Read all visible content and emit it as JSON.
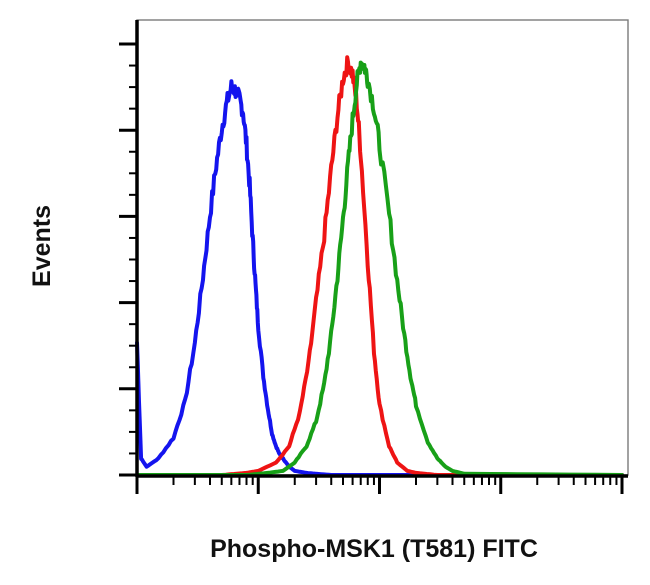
{
  "chart_data": {
    "type": "line",
    "title": "",
    "xlabel": "Phospho-MSK1 (T581) FITC",
    "ylabel": "Events",
    "x_scale": "log",
    "xlim": [
      1,
      10000
    ],
    "ylim": [
      0,
      100
    ],
    "x_tick_labels": [],
    "y_tick_labels": [],
    "grid": false,
    "legend": "none",
    "series": [
      {
        "color": "#1414ee",
        "x": [
          1,
          1.08,
          1.2,
          1.5,
          2,
          2.5,
          3,
          3.5,
          4,
          4.5,
          5,
          5.5,
          6,
          6.5,
          7,
          7.5,
          8,
          8.5,
          9,
          9.5,
          10,
          11,
          12,
          13,
          14,
          15,
          16,
          18,
          20,
          25,
          30,
          40,
          60,
          100,
          1000,
          10000
        ],
        "y": [
          32,
          4,
          2,
          4,
          9,
          18,
          32,
          48,
          63,
          75,
          84,
          90,
          94,
          93,
          91,
          88,
          80,
          70,
          57,
          46,
          36,
          24,
          16,
          10,
          7,
          5,
          4,
          2,
          1,
          0.5,
          0.3,
          0,
          0,
          0,
          0,
          0
        ]
      },
      {
        "color": "#ee1414",
        "x": [
          1,
          5,
          8,
          10,
          14,
          18,
          22,
          26,
          30,
          35,
          40,
          45,
          50,
          55,
          60,
          65,
          70,
          80,
          90,
          100,
          120,
          140,
          170,
          200,
          300,
          10000
        ],
        "y": [
          0,
          0,
          0.5,
          1,
          3,
          7,
          15,
          27,
          42,
          58,
          74,
          87,
          96,
          100,
          97,
          90,
          78,
          52,
          30,
          17,
          7,
          3,
          1,
          0.5,
          0,
          0
        ]
      },
      {
        "color": "#18a018",
        "x": [
          1,
          8,
          12,
          16,
          20,
          25,
          30,
          35,
          40,
          45,
          50,
          55,
          60,
          65,
          70,
          75,
          80,
          90,
          100,
          120,
          140,
          160,
          180,
          200,
          250,
          300,
          350,
          400,
          500,
          10000
        ],
        "y": [
          0,
          0,
          0.5,
          1,
          3,
          7,
          13,
          22,
          34,
          48,
          62,
          75,
          86,
          95,
          100,
          99,
          96,
          89,
          80,
          63,
          47,
          34,
          24,
          17,
          8,
          4,
          2,
          1,
          0.3,
          0
        ]
      }
    ]
  }
}
